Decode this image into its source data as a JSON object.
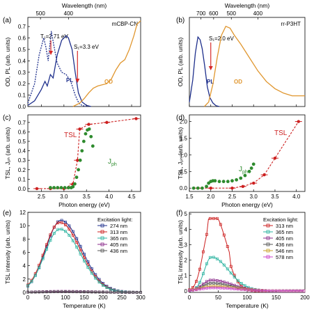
{
  "colors": {
    "pl": "#1e2f8c",
    "od": "#e0962e",
    "tsl": "#cc1f1f",
    "jph": "#2e8b2e",
    "arrow": "#d62828",
    "s274": "#1e2f8c",
    "s313": "#cc1f1f",
    "s365": "#2bb3a0",
    "s405": "#8a2a8a",
    "s436": "#555555",
    "s546": "#c9a227",
    "s578": "#cc44cc"
  },
  "panels": {
    "a": {
      "label": "(a)",
      "material": "mCBP-CN",
      "top_axis_label": "Wavelength (nm)",
      "ylabel": "OD, PL (arb. units)",
      "t1": "T₁=2.71 eV",
      "s1": "S₁=3.3 eV",
      "pl_label": "PL",
      "od_label": "OD"
    },
    "b": {
      "label": "(b)",
      "material": "rr-P3HT",
      "top_axis_label": "Wavelength (nm)",
      "ylabel": "OD, PL (arb. units)",
      "s1": "S₁=2.0 eV",
      "pl_label": "PL",
      "od_label": "OD"
    },
    "c": {
      "label": "(c)",
      "xlabel": "Photon energy (eV)",
      "ylabel": "TSL, Jₚₕ (arb. units)",
      "tsl_label": "TSL",
      "jph_label": "J",
      "jph_sub": "ph"
    },
    "d": {
      "label": "(d)",
      "xlabel": "Photon energy (eV)",
      "ylabel": "TSL, Jₚₕ (arb. units)",
      "tsl_label": "TSL",
      "jph_label": "J",
      "jph_sub": "ph"
    },
    "e": {
      "label": "(e)",
      "xlabel": "Temperature (K)",
      "ylabel": "TSL intensity (arb. units)",
      "legend_title": "Excitation light:"
    },
    "f": {
      "label": "(f)",
      "xlabel": "Temperature (K)",
      "ylabel": "TSL intensity (arb. units)",
      "legend_title": "Excitation light:"
    }
  },
  "chart_data": [
    {
      "panel": "a",
      "type": "line",
      "xlim": [
        2.2,
        4.7
      ],
      "ylim": [
        0,
        0.78
      ],
      "xticks": [
        2.5,
        3.0,
        3.5,
        4.0,
        4.5
      ],
      "yticks": [
        0.0,
        0.1,
        0.2,
        0.3,
        0.4,
        0.5,
        0.6,
        0.7
      ],
      "top_ticks": [
        500,
        400
      ],
      "series": [
        {
          "name": "PL",
          "style": "solid",
          "color_key": "pl",
          "x": [
            2.2,
            2.35,
            2.5,
            2.58,
            2.63,
            2.7,
            2.76,
            2.85,
            2.95,
            3.05,
            3.1,
            3.18,
            3.25,
            3.32,
            3.4,
            3.5,
            3.6
          ],
          "y": [
            0.01,
            0.05,
            0.15,
            0.22,
            0.18,
            0.28,
            0.25,
            0.45,
            0.58,
            0.62,
            0.6,
            0.5,
            0.3,
            0.12,
            0.04,
            0.01,
            0.0
          ]
        },
        {
          "style": "dotted",
          "color_key": "pl",
          "x": [
            2.2,
            2.35,
            2.45,
            2.55,
            2.6,
            2.65,
            2.72,
            2.77,
            2.85,
            2.95,
            3.05,
            3.15,
            3.25,
            3.33,
            3.4,
            3.5
          ],
          "y": [
            0.03,
            0.2,
            0.45,
            0.6,
            0.52,
            0.4,
            0.66,
            0.55,
            0.38,
            0.3,
            0.28,
            0.22,
            0.1,
            0.03,
            0.01,
            0.0
          ]
        },
        {
          "name": "OD",
          "style": "solid",
          "color_key": "od",
          "x": [
            3.2,
            3.35,
            3.45,
            3.55,
            3.65,
            3.75,
            3.85,
            3.95,
            4.05,
            4.15,
            4.25,
            4.35,
            4.45,
            4.55,
            4.62,
            4.7
          ],
          "y": [
            0.0,
            0.03,
            0.07,
            0.12,
            0.16,
            0.18,
            0.19,
            0.2,
            0.24,
            0.32,
            0.38,
            0.41,
            0.5,
            0.62,
            0.72,
            0.75
          ]
        }
      ],
      "annotations": [
        {
          "text": "T₁=2.71 eV",
          "x": 2.71
        },
        {
          "text": "S₁=3.3 eV",
          "x": 3.3
        }
      ]
    },
    {
      "panel": "b",
      "type": "line",
      "xlim": [
        1.5,
        4.2
      ],
      "ylim": [
        0,
        1.0
      ],
      "xticks": [
        1.5,
        2.0,
        2.5,
        3.0,
        3.5,
        4.0
      ],
      "top_ticks": [
        700,
        600,
        500,
        400
      ],
      "series": [
        {
          "name": "PL",
          "style": "solid",
          "color_key": "pl",
          "x": [
            1.5,
            1.58,
            1.64,
            1.7,
            1.75,
            1.8,
            1.86,
            1.92,
            1.98,
            2.05,
            2.12,
            2.2
          ],
          "y": [
            0.05,
            0.3,
            0.6,
            0.78,
            0.75,
            0.65,
            0.45,
            0.22,
            0.1,
            0.04,
            0.01,
            0.0
          ]
        },
        {
          "name": "OD",
          "style": "solid",
          "color_key": "od",
          "x": [
            1.85,
            1.95,
            2.05,
            2.15,
            2.25,
            2.35,
            2.45,
            2.55,
            2.7,
            2.9,
            3.1,
            3.3,
            3.5,
            3.7,
            3.9,
            4.1,
            4.2
          ],
          "y": [
            0.0,
            0.05,
            0.25,
            0.55,
            0.8,
            0.9,
            0.88,
            0.8,
            0.7,
            0.55,
            0.4,
            0.28,
            0.2,
            0.15,
            0.12,
            0.12,
            0.12
          ]
        }
      ],
      "annotations": [
        {
          "text": "S₁=2.0 eV",
          "x": 2.0
        }
      ]
    },
    {
      "panel": "c",
      "type": "scatter",
      "xlim": [
        2.2,
        4.7
      ],
      "ylim": [
        -0.03,
        0.78
      ],
      "xticks": [
        2.5,
        3.0,
        3.5,
        4.0,
        4.5
      ],
      "yticks": [
        0.0,
        0.1,
        0.2,
        0.3,
        0.4,
        0.5,
        0.6,
        0.7
      ],
      "series": [
        {
          "name": "TSL",
          "color_key": "tsl",
          "style": "dash-points",
          "x": [
            2.4,
            2.7,
            3.0,
            3.2,
            3.3,
            3.35,
            3.55,
            3.95,
            4.6
          ],
          "y": [
            0.0,
            0.0,
            0.0,
            0.05,
            0.3,
            0.63,
            0.68,
            0.7,
            0.74
          ]
        },
        {
          "name": "Jph",
          "color_key": "jph",
          "style": "points",
          "x": [
            2.7,
            2.78,
            2.86,
            2.94,
            3.02,
            3.1,
            3.16,
            3.2,
            3.24,
            3.28,
            3.32,
            3.36,
            3.4,
            3.44,
            3.48,
            3.52,
            3.56,
            3.6,
            3.64
          ],
          "y": [
            0.01,
            0.01,
            0.01,
            0.01,
            0.01,
            0.01,
            0.01,
            0.02,
            0.05,
            0.12,
            0.2,
            0.3,
            0.4,
            0.5,
            0.58,
            0.62,
            0.63,
            0.55,
            0.45
          ]
        }
      ]
    },
    {
      "panel": "d",
      "type": "scatter",
      "xlim": [
        1.5,
        4.2
      ],
      "ylim": [
        -0.1,
        2.2
      ],
      "xticks": [
        1.5,
        2.0,
        2.5,
        3.0,
        3.5,
        4.0
      ],
      "yticks": [
        0.0,
        0.5,
        1.0,
        1.5,
        2.0
      ],
      "series": [
        {
          "name": "TSL",
          "color_key": "tsl",
          "style": "dash-points",
          "x": [
            1.7,
            2.0,
            2.5,
            2.75,
            3.0,
            3.25,
            3.5,
            4.05
          ],
          "y": [
            0.0,
            0.0,
            0.0,
            0.05,
            0.15,
            0.4,
            0.9,
            2.0
          ]
        },
        {
          "name": "Jph",
          "color_key": "jph",
          "style": "points",
          "x": [
            1.6,
            1.7,
            1.8,
            1.9,
            1.95,
            2.0,
            2.05,
            2.1,
            2.2,
            2.3,
            2.4,
            2.5,
            2.6,
            2.7,
            2.8,
            2.9,
            2.95,
            3.0
          ],
          "y": [
            0.0,
            0.0,
            0.0,
            0.05,
            0.15,
            0.2,
            0.22,
            0.22,
            0.2,
            0.2,
            0.2,
            0.22,
            0.25,
            0.3,
            0.38,
            0.5,
            0.6,
            0.72
          ]
        }
      ]
    },
    {
      "panel": "e",
      "type": "line",
      "xlim": [
        0,
        300
      ],
      "ylim": [
        0,
        12
      ],
      "xticks": [
        0,
        50,
        100,
        150,
        200,
        250,
        300
      ],
      "yticks": [
        0,
        2,
        4,
        6,
        8,
        10,
        12
      ],
      "series": [
        {
          "name": "274 nm",
          "color_key": "s274",
          "marker": "square",
          "amp": 10.8,
          "center": 88,
          "wl": 40,
          "wr": 55
        },
        {
          "name": "313 nm",
          "color_key": "s313",
          "marker": "circle",
          "amp": 10.5,
          "center": 85,
          "wl": 40,
          "wr": 55
        },
        {
          "name": "365 nm",
          "color_key": "s365",
          "marker": "triangle",
          "amp": 9.5,
          "center": 85,
          "wl": 40,
          "wr": 55
        },
        {
          "name": "405 nm",
          "color_key": "s405",
          "marker": "diamond",
          "amp": 0.15,
          "center": 90,
          "wl": 60,
          "wr": 80
        },
        {
          "name": "436 nm",
          "color_key": "s436",
          "marker": "triangle-down",
          "amp": 0.1,
          "center": 90,
          "wl": 60,
          "wr": 80
        }
      ]
    },
    {
      "panel": "f",
      "type": "line",
      "xlim": [
        0,
        200
      ],
      "ylim": [
        -0.1,
        5.1
      ],
      "xticks": [
        0,
        50,
        100,
        150,
        200
      ],
      "yticks": [
        0,
        1,
        2,
        3,
        4,
        5
      ],
      "series": [
        {
          "name": "313 nm",
          "color_key": "s313",
          "marker": "square",
          "peaks": [
            [
              35,
              4.6
            ],
            [
              55,
              3.4
            ]
          ],
          "amp": 4.6,
          "center": 38,
          "wl": 12,
          "wr": 30
        },
        {
          "name": "365 nm",
          "color_key": "s365",
          "marker": "square",
          "amp": 2.2,
          "center": 38,
          "wl": 12,
          "wr": 30
        },
        {
          "name": "405 nm",
          "color_key": "s405",
          "marker": "circle",
          "amp": 0.7,
          "center": 38,
          "wl": 15,
          "wr": 35
        },
        {
          "name": "436 nm",
          "color_key": "s436",
          "marker": "triangle",
          "amp": 0.5,
          "center": 38,
          "wl": 15,
          "wr": 35
        },
        {
          "name": "546 nm",
          "color_key": "s546",
          "marker": "diamond",
          "amp": 0.3,
          "center": 40,
          "wl": 20,
          "wr": 40
        },
        {
          "name": "578 nm",
          "color_key": "s578",
          "marker": "triangle-down",
          "amp": 0.2,
          "center": 40,
          "wl": 20,
          "wr": 40
        }
      ]
    }
  ]
}
